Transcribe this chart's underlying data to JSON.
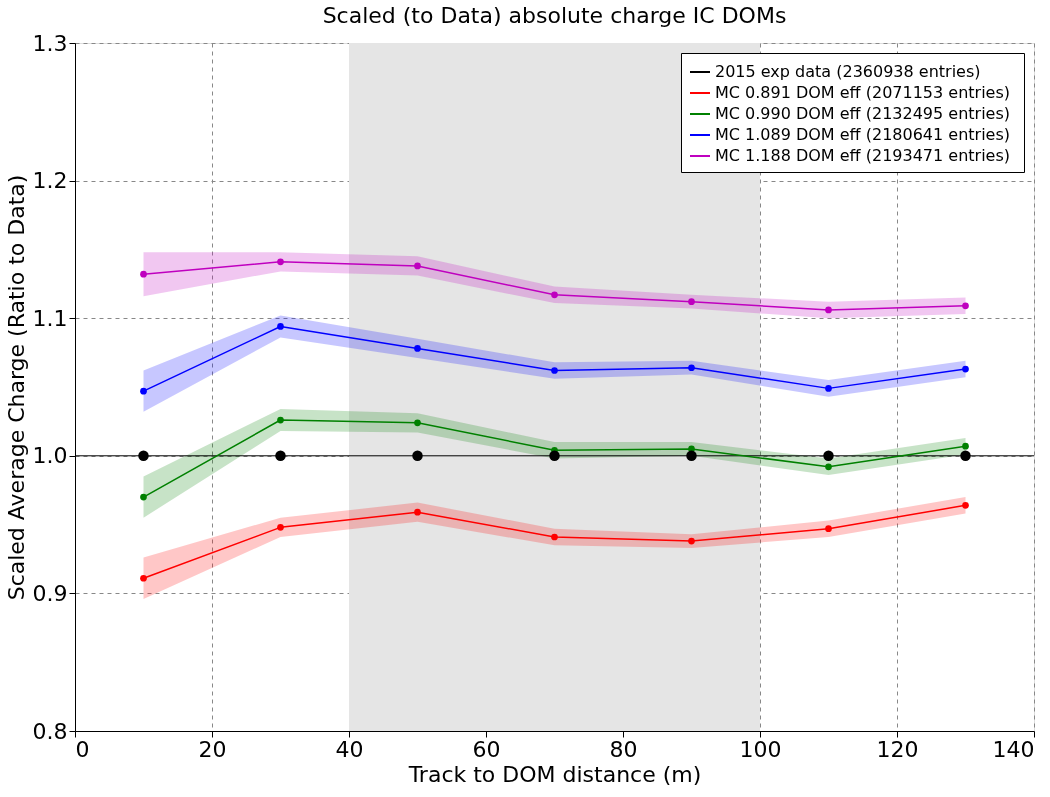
{
  "chart_data": {
    "type": "line",
    "title": "Scaled (to Data) absolute charge IC DOMs",
    "xlabel": "Track to DOM distance (m)",
    "ylabel": "Scaled Average Charge (Ratio to Data)",
    "x": [
      10,
      30,
      50,
      70,
      90,
      110,
      130
    ],
    "series": [
      {
        "name": "2015 exp data (2360938 entries)",
        "color": "#000000",
        "type": "scatter",
        "values": [
          1.0,
          1.0,
          1.0,
          1.0,
          1.0,
          1.0,
          1.0
        ]
      },
      {
        "name": "MC 0.891 DOM eff (2071153 entries)",
        "color": "#ff0000",
        "values": [
          0.911,
          0.948,
          0.959,
          0.941,
          0.938,
          0.947,
          0.964
        ],
        "lower": [
          0.896,
          0.941,
          0.952,
          0.935,
          0.933,
          0.941,
          0.958
        ],
        "upper": [
          0.926,
          0.955,
          0.966,
          0.947,
          0.943,
          0.953,
          0.97
        ]
      },
      {
        "name": "MC 0.990 DOM eff (2132495 entries)",
        "color": "#008000",
        "values": [
          0.97,
          1.026,
          1.024,
          1.004,
          1.005,
          0.992,
          1.007
        ],
        "lower": [
          0.955,
          1.018,
          1.017,
          0.998,
          1.0,
          0.986,
          1.001
        ],
        "upper": [
          0.985,
          1.034,
          1.031,
          1.01,
          1.01,
          0.998,
          1.013
        ]
      },
      {
        "name": "MC  1.089 DOM eff (2180641 entries)",
        "color": "#0000ff",
        "values": [
          1.047,
          1.094,
          1.078,
          1.062,
          1.064,
          1.049,
          1.063
        ],
        "lower": [
          1.032,
          1.086,
          1.071,
          1.056,
          1.059,
          1.043,
          1.057
        ],
        "upper": [
          1.062,
          1.102,
          1.085,
          1.068,
          1.069,
          1.055,
          1.069
        ]
      },
      {
        "name": "MC 1.188 DOM eff (2193471 entries)",
        "color": "#bf00bf",
        "values": [
          1.132,
          1.141,
          1.138,
          1.117,
          1.112,
          1.106,
          1.109
        ],
        "lower": [
          1.116,
          1.134,
          1.131,
          1.111,
          1.107,
          1.1,
          1.103
        ],
        "upper": [
          1.148,
          1.148,
          1.145,
          1.123,
          1.117,
          1.112,
          1.115
        ]
      }
    ],
    "xlim": [
      0,
      140
    ],
    "xticks": [
      0,
      20,
      40,
      60,
      80,
      100,
      120,
      140
    ],
    "ylim": [
      0.8,
      1.3
    ],
    "yticks": [
      {
        "value": 0.8,
        "label": "0.8"
      },
      {
        "value": 0.9,
        "label": "0.9"
      },
      {
        "value": 1.0,
        "label": "1.0"
      },
      {
        "value": 1.1,
        "label": "1.1"
      },
      {
        "value": 1.2,
        "label": "1.2"
      },
      {
        "value": 1.3,
        "label": "1.3"
      }
    ],
    "ref_lines": [
      {
        "axis": "y",
        "value": 1.0,
        "color": "#000000"
      }
    ],
    "bands": [
      {
        "axis": "x",
        "from": 40,
        "to": 100,
        "color": "#e5e5e5"
      }
    ],
    "grid": true,
    "legend": "top right",
    "marker": "circle",
    "line_style": "solid"
  }
}
